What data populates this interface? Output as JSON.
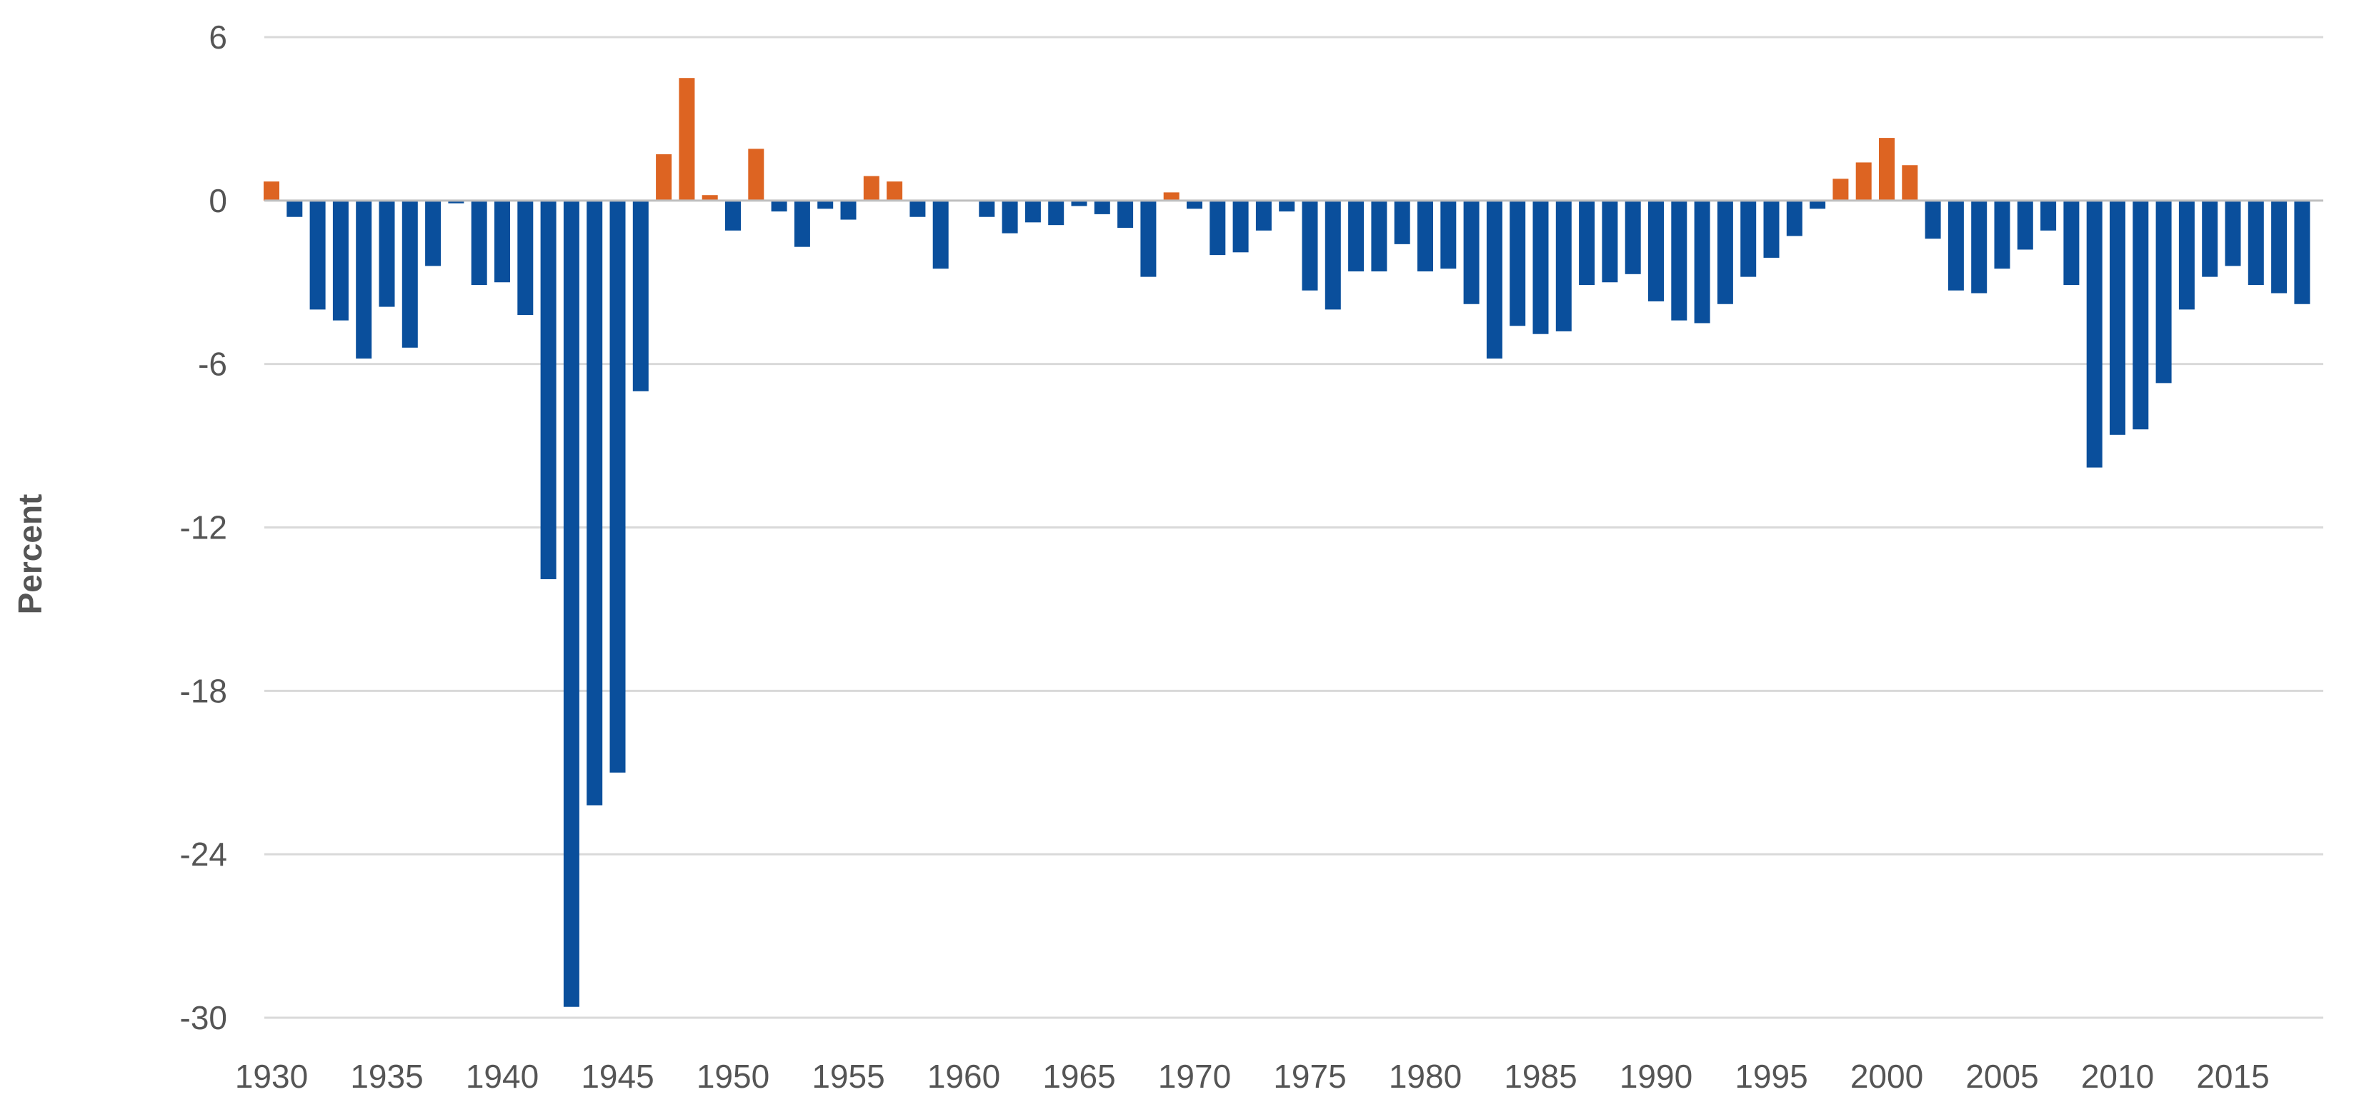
{
  "chart_data": {
    "type": "bar",
    "title": "",
    "xlabel": "",
    "ylabel": "Percent",
    "ylim": [
      -30,
      6
    ],
    "yticks": [
      6,
      0,
      -6,
      -12,
      -18,
      -24,
      -30
    ],
    "xtick_labels": [
      "1930",
      "1935",
      "1940",
      "1945",
      "1950",
      "1955",
      "1960",
      "1965",
      "1970",
      "1975",
      "1980",
      "1985",
      "1990",
      "1995",
      "2000",
      "2005",
      "2010",
      "2015"
    ],
    "grid": true,
    "legend": "none",
    "colors": {
      "positive": "#DD6422",
      "negative": "#0A4F9C",
      "grid": "#D9D9D9",
      "axis": "#BFBFBF"
    },
    "categories": [
      "1930",
      "1931",
      "1932",
      "1933",
      "1934",
      "1935",
      "1936",
      "1937",
      "1938",
      "1939",
      "1940",
      "1941",
      "1942",
      "1943",
      "1944",
      "1945",
      "1946",
      "1947",
      "1948",
      "1949",
      "1950",
      "1951",
      "1952",
      "1953",
      "1954",
      "1955",
      "1956",
      "1957",
      "1958",
      "1959",
      "1960",
      "1961",
      "1962",
      "1963",
      "1964",
      "1965",
      "1966",
      "1967",
      "1968",
      "1969",
      "1970",
      "1971",
      "1972",
      "1973",
      "1974",
      "1975",
      "1976",
      "1977",
      "1978",
      "1979",
      "1980",
      "1981",
      "1982",
      "1983",
      "1984",
      "1985",
      "1986",
      "1987",
      "1988",
      "1989",
      "1990",
      "1991",
      "1992",
      "1993",
      "1994",
      "1995",
      "1996",
      "1997",
      "1998",
      "1999",
      "2000",
      "2001",
      "2002",
      "2003",
      "2004",
      "2005",
      "2006",
      "2007",
      "2008",
      "2009",
      "2010",
      "2011",
      "2012",
      "2013",
      "2014",
      "2015",
      "2016",
      "2017",
      "2018"
    ],
    "values": [
      0.7,
      -0.6,
      -4.0,
      -4.4,
      -5.8,
      -3.9,
      -5.4,
      -2.4,
      -0.1,
      -3.1,
      -3.0,
      -4.2,
      -13.9,
      -29.6,
      -22.2,
      -21.0,
      -7.0,
      1.7,
      4.5,
      0.2,
      -1.1,
      1.9,
      -0.4,
      -1.7,
      -0.3,
      -0.7,
      0.9,
      0.7,
      -0.6,
      -2.5,
      0.0,
      -0.6,
      -1.2,
      -0.8,
      -0.9,
      -0.2,
      -0.5,
      -1.0,
      -2.8,
      0.3,
      -0.3,
      -2.0,
      -1.9,
      -1.1,
      -0.4,
      -3.3,
      -4.0,
      -2.6,
      -2.6,
      -1.6,
      -2.6,
      -2.5,
      -3.8,
      -5.8,
      -4.6,
      -4.9,
      -4.8,
      -3.1,
      -3.0,
      -2.7,
      -3.7,
      -4.4,
      -4.5,
      -3.8,
      -2.8,
      -2.1,
      -1.3,
      -0.3,
      0.8,
      1.4,
      2.3,
      1.3,
      -1.4,
      -3.3,
      -3.4,
      -2.5,
      -1.8,
      -1.1,
      -3.1,
      -9.8,
      -8.6,
      -8.4,
      -6.7,
      -4.0,
      -2.8,
      -2.4,
      -3.1,
      -3.4,
      -3.8
    ]
  }
}
